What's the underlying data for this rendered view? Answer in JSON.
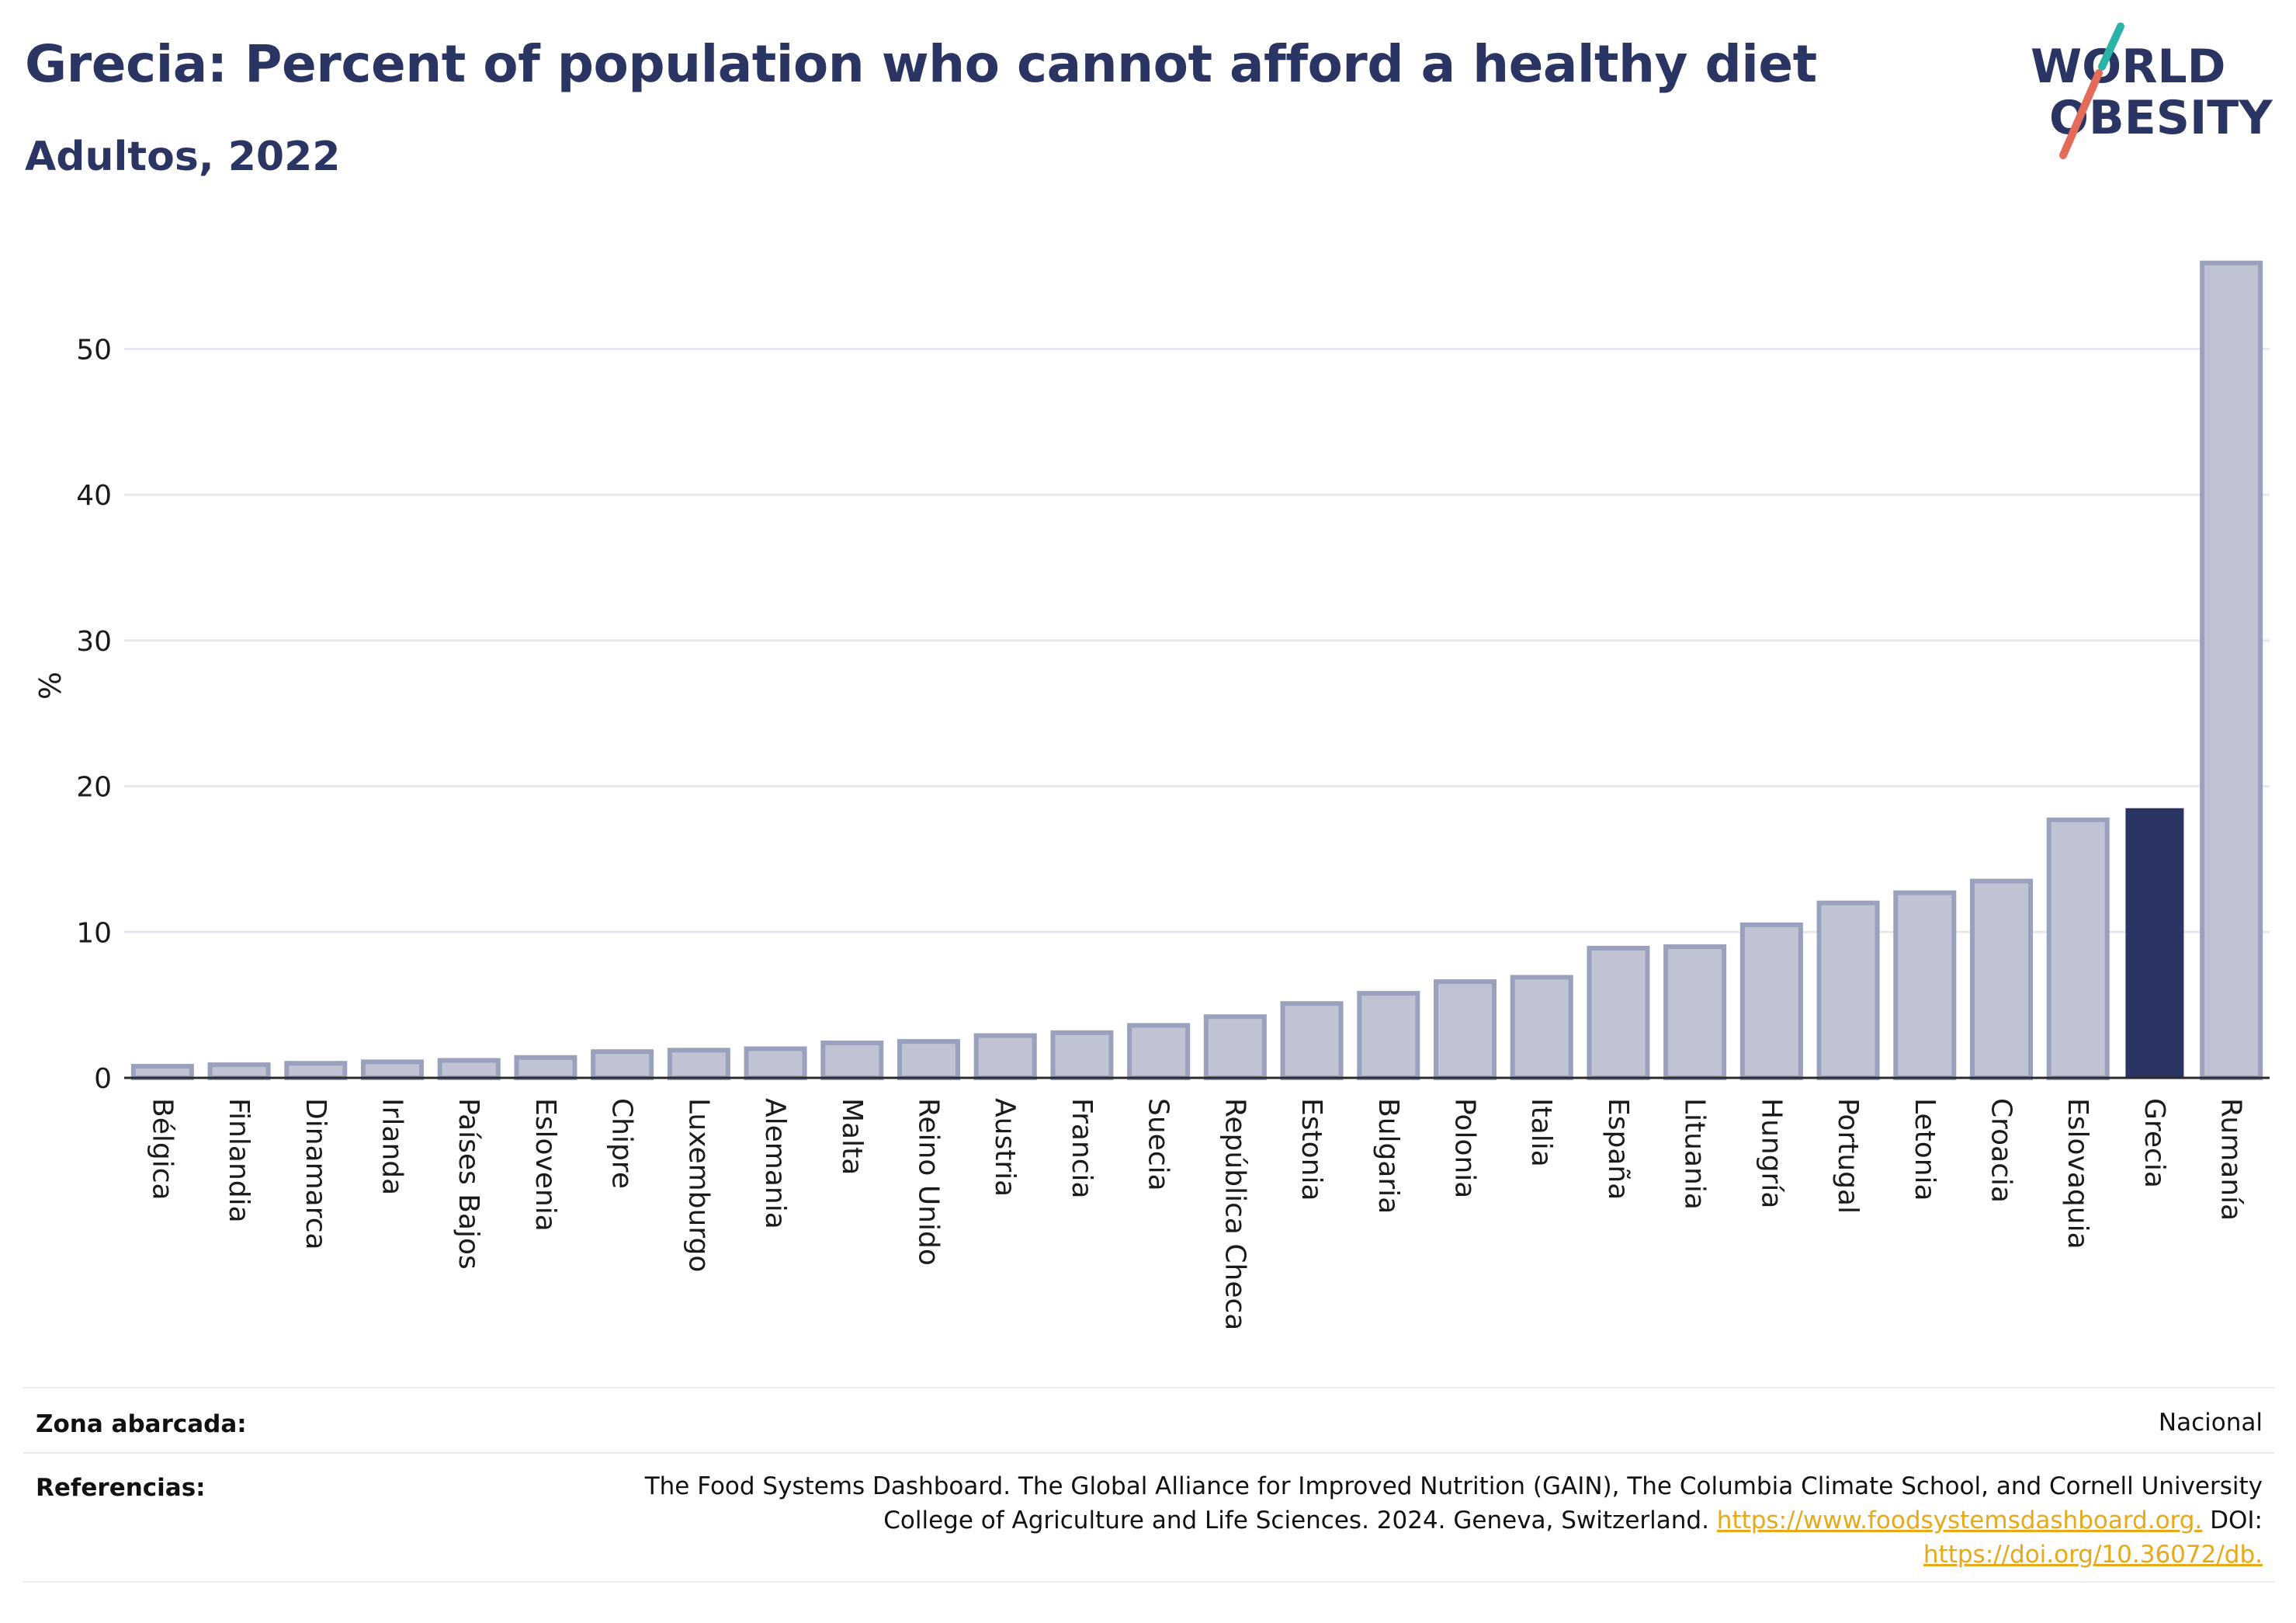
{
  "header": {
    "title": "Grecia: Percent of population who cannot afford a healthy diet",
    "subtitle": "Adultos, 2022"
  },
  "logo": {
    "line1": "WORLD",
    "line2": "OBESITY",
    "accent_teal": "#2bb3a8",
    "accent_red": "#e46a5a",
    "text_color": "#2b3563"
  },
  "colors": {
    "bar_fill": "#bfc3d3",
    "bar_stroke": "#9aa1bd",
    "highlight_fill": "#2b3563",
    "grid": "#e6e8ef",
    "axis": "#2b2b2b"
  },
  "chart_data": {
    "type": "bar",
    "title": "Grecia: Percent of population who cannot afford a healthy diet",
    "subtitle": "Adultos, 2022",
    "xlabel": "",
    "ylabel": "%",
    "ylim": [
      0,
      57
    ],
    "yticks": [
      0,
      10,
      20,
      30,
      40,
      50
    ],
    "grid": true,
    "highlight": "Grecia",
    "categories": [
      "Bélgica",
      "Finlandia",
      "Dinamarca",
      "Irlanda",
      "Países Bajos",
      "Eslovenia",
      "Chipre",
      "Luxemburgo",
      "Alemania",
      "Malta",
      "Reino Unido",
      "Austria",
      "Francia",
      "Suecia",
      "República Checa",
      "Estonia",
      "Bulgaria",
      "Polonia",
      "Italia",
      "España",
      "Lituania",
      "Hungría",
      "Portugal",
      "Letonia",
      "Croacia",
      "Eslovaquia",
      "Grecia",
      "Rumanía"
    ],
    "values": [
      0.8,
      0.9,
      1.0,
      1.1,
      1.2,
      1.4,
      1.8,
      1.9,
      2.0,
      2.4,
      2.5,
      2.9,
      3.1,
      3.6,
      4.2,
      5.1,
      5.8,
      6.6,
      6.9,
      8.9,
      9.0,
      10.5,
      12.0,
      12.7,
      13.5,
      17.7,
      18.5,
      55.9
    ]
  },
  "footer": {
    "zona_label": "Zona abarcada:",
    "zona_value": "Nacional",
    "ref_label": "Referencias:",
    "ref_line1": "The Food Systems Dashboard. The Global Alliance for Improved Nutrition (GAIN), The Columbia Climate School, and Cornell University",
    "ref_line2_text": "College of Agriculture and Life Sciences. 2024. Geneva, Switzerland.",
    "ref_link1": "https://www.foodsystemsdashboard.org.",
    "ref_doi": "DOI:",
    "ref_link2": "https://doi.org/10.36072/db."
  }
}
